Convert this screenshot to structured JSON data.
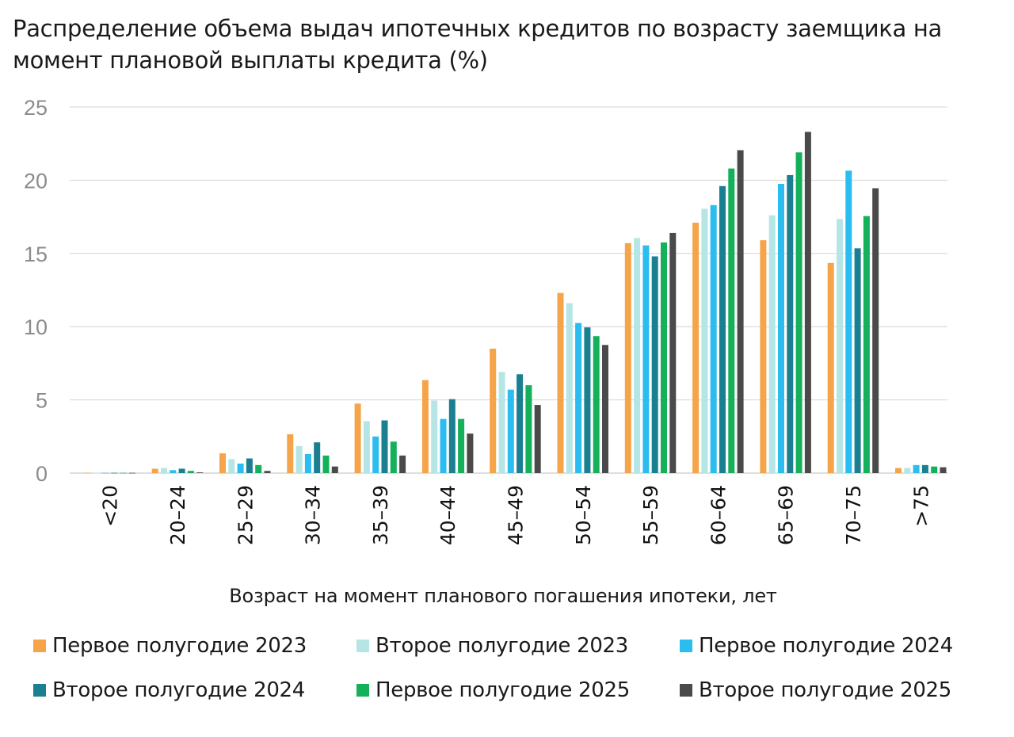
{
  "title": "Распределение объема выдач ипотечных кредитов по возрасту заемщика на момент плановой выплаты кредита (%)",
  "chart_data": {
    "type": "bar",
    "title": "Распределение объема выдач ипотечных кредитов по возрасту заемщика на момент плановой выплаты кредита (%)",
    "xlabel": "Возраст на момент планового погашения ипотеки, лет",
    "ylabel": "",
    "ylim": [
      0,
      25
    ],
    "yticks": [
      0,
      5,
      10,
      15,
      20,
      25
    ],
    "grid": true,
    "legend_position": "bottom",
    "categories": [
      "<20",
      "20–24",
      "25–29",
      "30–34",
      "35–39",
      "40–44",
      "45–49",
      "50–54",
      "55–59",
      "60–64",
      "65–69",
      "70–75",
      ">75"
    ],
    "series": [
      {
        "name": "Первое полугодие 2023",
        "color": "#f5a44a",
        "values": [
          0.02,
          0.3,
          1.35,
          2.65,
          4.75,
          6.35,
          8.5,
          12.3,
          15.7,
          17.1,
          15.9,
          14.35,
          0.35
        ]
      },
      {
        "name": "Второе полугодие 2023",
        "color": "#b5e5e5",
        "values": [
          0.02,
          0.35,
          0.95,
          1.85,
          3.55,
          4.95,
          6.9,
          11.6,
          16.05,
          18.05,
          17.6,
          17.35,
          0.35
        ]
      },
      {
        "name": "Первое полугодие 2024",
        "color": "#2bbcf0",
        "values": [
          0.02,
          0.2,
          0.65,
          1.3,
          2.5,
          3.7,
          5.7,
          10.25,
          15.55,
          18.3,
          19.75,
          20.65,
          0.55
        ]
      },
      {
        "name": "Второе полугодие 2024",
        "color": "#1a7f91",
        "values": [
          0.02,
          0.3,
          1.0,
          2.1,
          3.6,
          5.05,
          6.75,
          9.95,
          14.8,
          19.6,
          20.35,
          15.35,
          0.55
        ]
      },
      {
        "name": "Первое полугодие 2025",
        "color": "#14b05a",
        "values": [
          0.02,
          0.15,
          0.55,
          1.2,
          2.15,
          3.7,
          6.0,
          9.35,
          15.75,
          20.8,
          21.9,
          17.55,
          0.45
        ]
      },
      {
        "name": "Второе полугодие 2025",
        "color": "#4a4a4a",
        "values": [
          0.02,
          0.05,
          0.15,
          0.45,
          1.2,
          2.7,
          4.65,
          8.75,
          16.4,
          22.05,
          23.3,
          19.45,
          0.4
        ]
      }
    ]
  }
}
